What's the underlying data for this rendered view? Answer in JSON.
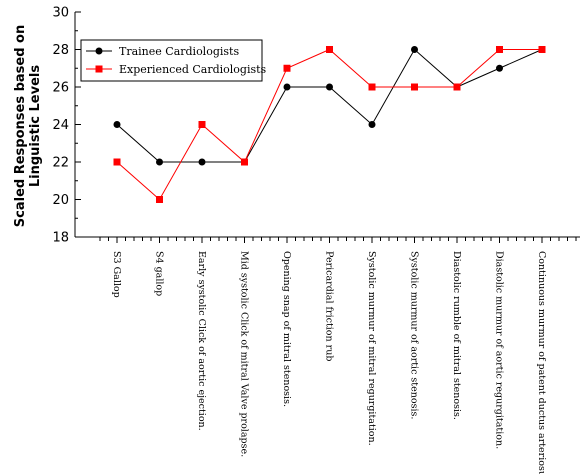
{
  "chart_data": {
    "type": "line",
    "title": "",
    "xlabel": "",
    "ylabel": [
      "Scaled Responses based on",
      "Linguistic Levels"
    ],
    "ylim": [
      18,
      30
    ],
    "yticks": [
      "18",
      "20",
      "22",
      "24",
      "26",
      "28",
      "30"
    ],
    "categories": [
      "S3 Gallop",
      "S4  gallop",
      "Early systolic Click of aortic ejection.",
      "Mid systolic Click of mitral Valve prolapse.",
      "Opening snap of mitral stenosis.",
      "Pericardial friction rub",
      "Systolic murmur of mitral regurgitation.",
      "Systolic murmur of aortic stenosis.",
      "Diastolic rumble of mitral stenosis.",
      "Diastolic murmur of aortic regurgitation.",
      "Continuous murmur of patent ductus arteriosus"
    ],
    "series": [
      {
        "name": "Trainee Cardiologists",
        "color": "#000000",
        "marker": "circle",
        "values": [
          24,
          22,
          22,
          22,
          26,
          26,
          24,
          28,
          26,
          27,
          28
        ]
      },
      {
        "name": "Experienced Cardiologists",
        "color": "#ff0000",
        "marker": "square",
        "values": [
          22,
          20,
          24,
          22,
          27,
          28,
          26,
          26,
          26,
          28,
          28
        ]
      }
    ],
    "legend_position": "top-left",
    "grid": false
  }
}
